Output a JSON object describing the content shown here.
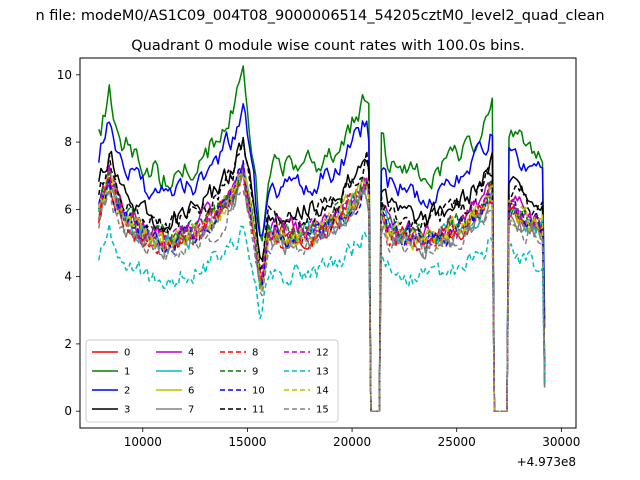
{
  "chart_data": {
    "type": "line",
    "suptitle": "n file: modeM0/AS1C09_004T08_9000006514_54205cztM0_level2_quad_clean",
    "title": "Quadrant 0 module wise count rates with 100.0s bins.",
    "xlabel": "",
    "ylabel": "",
    "x_offset_label": "+4.973e8",
    "xlim": [
      7000,
      30700
    ],
    "ylim": [
      -0.5,
      10.5
    ],
    "xticks": [
      10000,
      15000,
      20000,
      25000,
      30000
    ],
    "xtick_labels": [
      "10000",
      "15000",
      "20000",
      "25000",
      "30000"
    ],
    "yticks": [
      0,
      2,
      4,
      6,
      8,
      10
    ],
    "ytick_labels": [
      "0",
      "2",
      "4",
      "6",
      "8",
      "10"
    ],
    "x_start": 7900,
    "x_end": 29200,
    "bin_width": 100,
    "gaps": [
      [
        20900,
        21300
      ],
      [
        26800,
        27400
      ]
    ],
    "shape_points": [
      [
        7900,
        5.9
      ],
      [
        8400,
        6.8
      ],
      [
        9000,
        5.9
      ],
      [
        10000,
        5.3
      ],
      [
        11000,
        5.0
      ],
      [
        12500,
        5.3
      ],
      [
        13500,
        5.8
      ],
      [
        14300,
        6.4
      ],
      [
        14800,
        7.1
      ],
      [
        15300,
        5.5
      ],
      [
        15650,
        3.6
      ],
      [
        16000,
        5.3
      ],
      [
        17000,
        5.2
      ],
      [
        18500,
        5.4
      ],
      [
        19500,
        5.8
      ],
      [
        20700,
        6.8
      ],
      [
        20880,
        6.3
      ],
      [
        21350,
        6.0
      ],
      [
        21700,
        5.4
      ],
      [
        22500,
        5.2
      ],
      [
        23500,
        5.0
      ],
      [
        24500,
        5.3
      ],
      [
        25500,
        5.6
      ],
      [
        26300,
        6.2
      ],
      [
        26700,
        6.5
      ],
      [
        27450,
        6.0
      ],
      [
        28000,
        5.8
      ],
      [
        29200,
        5.4
      ]
    ],
    "legend_position": "lower-left",
    "legend_columns": 4,
    "series": [
      {
        "name": "0",
        "color": "#ff0000",
        "dash": "solid",
        "level": 1.0,
        "noise": 0.28,
        "seed": 1
      },
      {
        "name": "1",
        "color": "#008000",
        "dash": "solid",
        "level": 1.38,
        "noise": 0.32,
        "seed": 2
      },
      {
        "name": "2",
        "color": "#0000ff",
        "dash": "solid",
        "level": 1.27,
        "noise": 0.3,
        "seed": 3
      },
      {
        "name": "3",
        "color": "#000000",
        "dash": "solid",
        "level": 1.13,
        "noise": 0.28,
        "seed": 4
      },
      {
        "name": "4",
        "color": "#bf00bf",
        "dash": "solid",
        "level": 1.03,
        "noise": 0.28,
        "seed": 5
      },
      {
        "name": "5",
        "color": "#00bfbf",
        "dash": "solid",
        "level": 0.99,
        "noise": 0.28,
        "seed": 6
      },
      {
        "name": "6",
        "color": "#bfbf00",
        "dash": "solid",
        "level": 1.0,
        "noise": 0.28,
        "seed": 7
      },
      {
        "name": "7",
        "color": "#808080",
        "dash": "solid",
        "level": 0.96,
        "noise": 0.28,
        "seed": 8
      },
      {
        "name": "8",
        "color": "#ff0000",
        "dash": "dashed",
        "level": 0.99,
        "noise": 0.28,
        "seed": 9
      },
      {
        "name": "9",
        "color": "#008000",
        "dash": "dashed",
        "level": 1.02,
        "noise": 0.28,
        "seed": 10
      },
      {
        "name": "10",
        "color": "#0000ff",
        "dash": "dashed",
        "level": 1.0,
        "noise": 0.3,
        "seed": 11
      },
      {
        "name": "11",
        "color": "#000000",
        "dash": "dashed",
        "level": 1.1,
        "noise": 0.28,
        "seed": 12
      },
      {
        "name": "12",
        "color": "#bf00bf",
        "dash": "dashed",
        "level": 1.0,
        "noise": 0.28,
        "seed": 13
      },
      {
        "name": "13",
        "color": "#00bfbf",
        "dash": "dashed",
        "level": 0.78,
        "noise": 0.28,
        "seed": 14
      },
      {
        "name": "14",
        "color": "#bfbf00",
        "dash": "dashed",
        "level": 1.0,
        "noise": 0.28,
        "seed": 15
      },
      {
        "name": "15",
        "color": "#808080",
        "dash": "dashed",
        "level": 0.95,
        "noise": 0.28,
        "seed": 16
      }
    ]
  }
}
